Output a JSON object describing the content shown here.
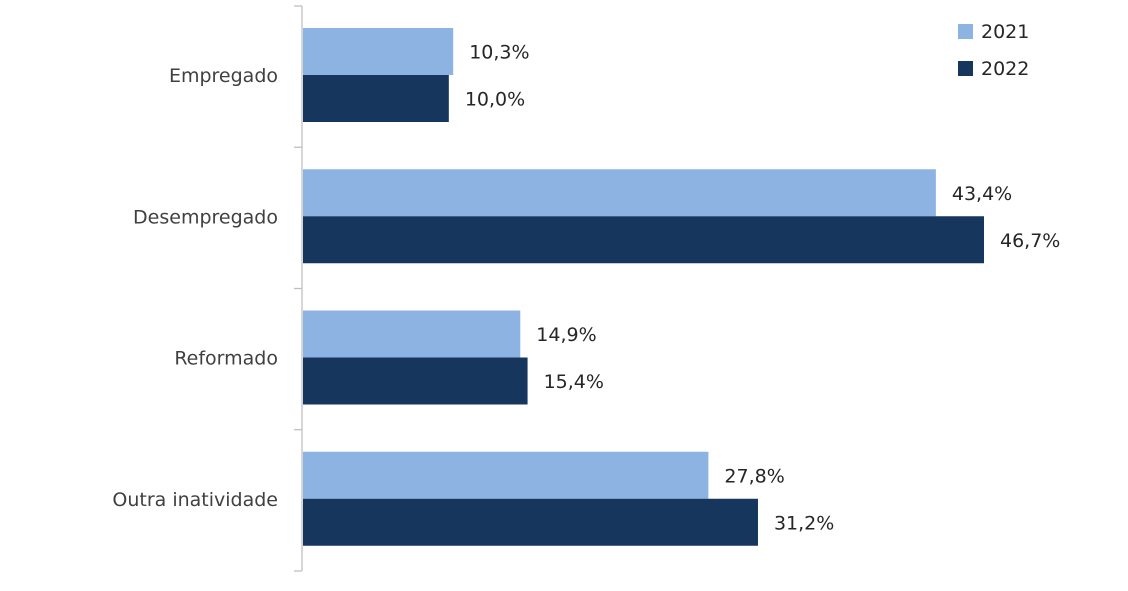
{
  "chart_data": {
    "type": "bar",
    "orientation": "horizontal",
    "title": "",
    "xlabel": "",
    "ylabel": "",
    "xlim": [
      0,
      50
    ],
    "grid": false,
    "legend_position": "top-right",
    "categories": [
      "Empregado",
      "Desempregado",
      "Reformado",
      "Outra inatividade"
    ],
    "series": [
      {
        "name": "2021",
        "color": "#8DB3E2",
        "values": [
          10.3,
          43.4,
          14.9,
          27.8
        ],
        "labels": [
          "10,3%",
          "43,4%",
          "14,9%",
          "27,8%"
        ]
      },
      {
        "name": "2022",
        "color": "#17365D",
        "values": [
          10.0,
          46.7,
          15.4,
          31.2
        ],
        "labels": [
          "10,0%",
          "46,7%",
          "15,4%",
          "31,2%"
        ]
      }
    ]
  },
  "colors": {
    "axis": "#BFBFBF",
    "text": "#262626"
  }
}
